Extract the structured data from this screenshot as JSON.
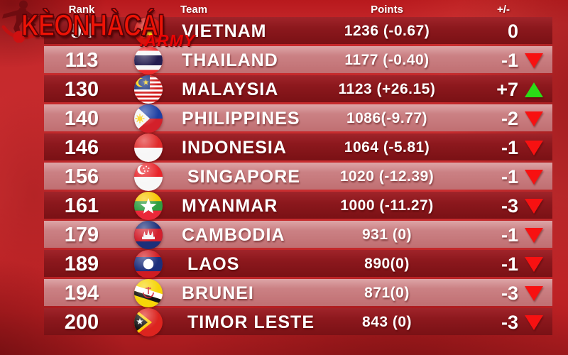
{
  "watermark": {
    "brand": "KÈONHÀCÁI",
    "suffix": ".ARMY"
  },
  "header": {
    "rank": "Rank",
    "team": "Team",
    "points": "Points",
    "change": "+/-"
  },
  "rows": [
    {
      "rank": "94",
      "flag": "vietnam",
      "team": "VIETNAM",
      "points": "1236 (-0.67)",
      "change": "0",
      "direction": "none"
    },
    {
      "rank": "113",
      "flag": "thailand",
      "team": "THAILAND",
      "points": "1177 (-0.40)",
      "change": "-1",
      "direction": "down"
    },
    {
      "rank": "130",
      "flag": "malaysia",
      "team": "MALAYSIA",
      "points": "1123 (+26.15)",
      "change": "+7",
      "direction": "up"
    },
    {
      "rank": "140",
      "flag": "philippines",
      "team": "PHILIPPINES",
      "points": "1086(-9.77)",
      "change": "-2",
      "direction": "down"
    },
    {
      "rank": "146",
      "flag": "indonesia",
      "team": "INDONESIA",
      "points": "1064 (-5.81)",
      "change": "-1",
      "direction": "down"
    },
    {
      "rank": "156",
      "flag": "singapore",
      "team": " SINGAPORE",
      "points": "1020 (-12.39)",
      "change": "-1",
      "direction": "down"
    },
    {
      "rank": "161",
      "flag": "myanmar",
      "team": "MYANMAR",
      "points": "1000 (-11.27)",
      "change": "-3",
      "direction": "down"
    },
    {
      "rank": "179",
      "flag": "cambodia",
      "team": "CAMBODIA",
      "points": "931 (0)",
      "change": "-1",
      "direction": "down"
    },
    {
      "rank": "189",
      "flag": "laos",
      "team": " LAOS",
      "points": "890(0)",
      "change": "-1",
      "direction": "down"
    },
    {
      "rank": "194",
      "flag": "brunei",
      "team": "BRUNEI",
      "points": "871(0)",
      "change": "-3",
      "direction": "down"
    },
    {
      "rank": "200",
      "flag": "timor-leste",
      "team": " TIMOR LESTE",
      "points": "843 (0)",
      "change": "-3",
      "direction": "down"
    }
  ],
  "colors": {
    "background": "#c42829",
    "row_dark": "#8a171c",
    "row_light": "#c67d80",
    "arrow_up": "#2bdc16",
    "arrow_down": "#f71111",
    "text": "#ffffff",
    "brand": "#ee1306"
  },
  "chart_data": {
    "type": "table",
    "columns": [
      "Rank",
      "Team",
      "Points",
      "+/-"
    ],
    "rows": [
      [
        "94",
        "VIETNAM",
        "1236 (-0.67)",
        "0"
      ],
      [
        "113",
        "THAILAND",
        "1177 (-0.40)",
        "-1"
      ],
      [
        "130",
        "MALAYSIA",
        "1123 (+26.15)",
        "+7"
      ],
      [
        "140",
        "PHILIPPINES",
        "1086(-9.77)",
        "-2"
      ],
      [
        "146",
        "INDONESIA",
        "1064 (-5.81)",
        "-1"
      ],
      [
        "156",
        "SINGAPORE",
        "1020 (-12.39)",
        "-1"
      ],
      [
        "161",
        "MYANMAR",
        "1000 (-11.27)",
        "-3"
      ],
      [
        "179",
        "CAMBODIA",
        "931 (0)",
        "-1"
      ],
      [
        "189",
        "LAOS",
        "890(0)",
        "-1"
      ],
      [
        "194",
        "BRUNEI",
        "871(0)",
        "-3"
      ],
      [
        "200",
        "TIMOR LESTE",
        "843 (0)",
        "-3"
      ]
    ]
  }
}
